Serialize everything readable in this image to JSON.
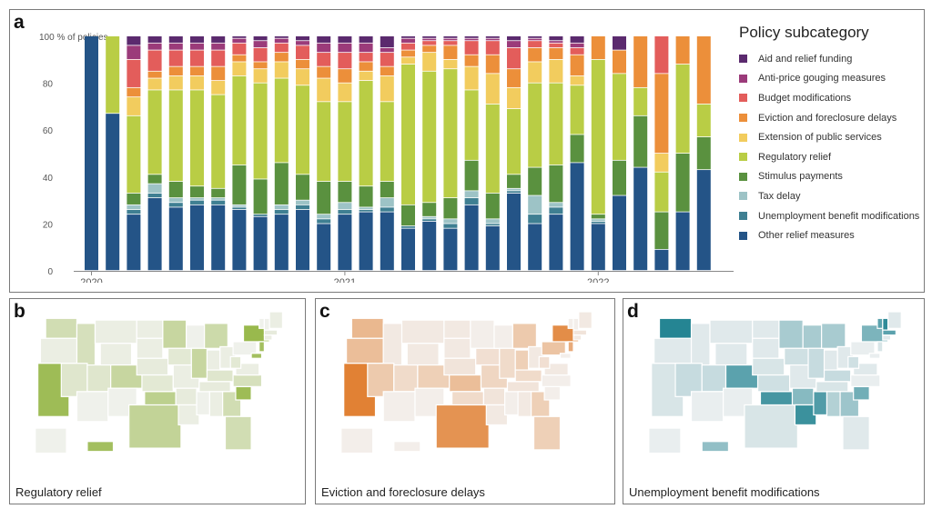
{
  "panels": {
    "a": {
      "letter": "a"
    },
    "b": {
      "letter": "b",
      "caption": "Regulatory relief",
      "color": "#8fb23a",
      "light": "#e3ebd2"
    },
    "c": {
      "letter": "c",
      "caption": "Eviction and foreclosure delays",
      "color": "#e07b2a",
      "light": "#f2dcc8"
    },
    "d": {
      "letter": "d",
      "caption": "Unemployment benefit modifications",
      "color": "#1a7f8e",
      "light": "#cfe3e6"
    }
  },
  "legend": {
    "title": "Policy subcategory",
    "items": [
      {
        "label": "Aid and relief funding",
        "color": "#5b2a6e"
      },
      {
        "label": "Anti-price gouging measures",
        "color": "#9b3b7a"
      },
      {
        "label": "Budget modifications",
        "color": "#e35d5b"
      },
      {
        "label": "Eviction and foreclosure delays",
        "color": "#ec8f3a"
      },
      {
        "label": "Extension of public services",
        "color": "#f2cc5e"
      },
      {
        "label": "Regulatory relief",
        "color": "#b9cd45"
      },
      {
        "label": "Stimulus payments",
        "color": "#5a913f"
      },
      {
        "label": "Tax delay",
        "color": "#9dc3c6"
      },
      {
        "label": "Unemployment benefit modifications",
        "color": "#3f7f92"
      },
      {
        "label": "Other relief measures",
        "color": "#245487"
      }
    ]
  },
  "chart_data": {
    "type": "bar",
    "stacked": true,
    "ylabel": "% of policies",
    "ylim": [
      0,
      100
    ],
    "y_ticks": [
      "100",
      "80",
      "60",
      "40",
      "20",
      "0"
    ],
    "x_tick_labels": [
      "2020",
      "2021",
      "2022"
    ],
    "x_tick_at_bar": [
      0,
      12,
      24
    ],
    "grid": false,
    "legend_position": "right",
    "series_order": [
      "Other relief measures",
      "Unemployment benefit modifications",
      "Tax delay",
      "Stimulus payments",
      "Regulatory relief",
      "Extension of public services",
      "Eviction and foreclosure delays",
      "Budget modifications",
      "Anti-price gouging measures",
      "Aid and relief funding"
    ],
    "bars": [
      [
        100,
        0,
        0,
        0,
        0,
        0,
        0,
        0,
        0,
        0
      ],
      [
        67,
        0,
        0,
        0,
        33,
        0,
        0,
        0,
        0,
        0
      ],
      [
        24,
        2,
        2,
        5,
        33,
        8,
        4,
        12,
        6,
        4
      ],
      [
        31,
        2,
        4,
        4,
        36,
        5,
        3,
        9,
        3,
        3
      ],
      [
        27,
        2,
        2,
        7,
        39,
        6,
        4,
        7,
        3,
        3
      ],
      [
        28,
        2,
        1,
        5,
        41,
        6,
        4,
        7,
        3,
        3
      ],
      [
        28,
        2,
        1,
        4,
        40,
        6,
        6,
        7,
        3,
        3
      ],
      [
        26,
        1,
        1,
        17,
        38,
        6,
        3,
        5,
        2,
        1
      ],
      [
        23,
        1,
        0,
        15,
        41,
        6,
        3,
        6,
        3,
        2
      ],
      [
        24,
        2,
        2,
        18,
        36,
        7,
        4,
        4,
        2,
        1
      ],
      [
        26,
        2,
        2,
        11,
        38,
        7,
        4,
        6,
        2,
        2
      ],
      [
        20,
        2,
        2,
        14,
        34,
        10,
        5,
        6,
        4,
        3
      ],
      [
        24,
        2,
        3,
        9,
        34,
        8,
        6,
        7,
        4,
        3
      ],
      [
        25,
        1,
        1,
        9,
        45,
        4,
        4,
        4,
        4,
        3
      ],
      [
        25,
        2,
        4,
        7,
        34,
        11,
        4,
        6,
        2,
        5
      ],
      [
        18,
        1,
        0,
        9,
        60,
        3,
        3,
        3,
        2,
        1
      ],
      [
        21,
        1,
        1,
        6,
        56,
        8,
        3,
        2,
        1,
        1
      ],
      [
        18,
        2,
        2,
        9,
        55,
        4,
        6,
        2,
        1,
        1
      ],
      [
        28,
        3,
        3,
        13,
        30,
        10,
        5,
        6,
        1,
        1
      ],
      [
        19,
        1,
        2,
        11,
        38,
        13,
        8,
        6,
        1,
        1
      ],
      [
        33,
        1,
        1,
        6,
        28,
        9,
        8,
        9,
        3,
        2
      ],
      [
        20,
        4,
        8,
        12,
        36,
        9,
        6,
        3,
        1,
        1
      ],
      [
        24,
        3,
        2,
        16,
        35,
        10,
        5,
        2,
        1,
        2
      ],
      [
        46,
        0,
        0,
        12,
        21,
        4,
        9,
        3,
        2,
        3
      ],
      [
        20,
        1,
        1,
        2,
        66,
        0,
        10,
        0,
        0,
        0
      ],
      [
        32,
        0,
        0,
        15,
        37,
        0,
        10,
        0,
        0,
        6
      ],
      [
        44,
        0,
        0,
        22,
        12,
        0,
        22,
        0,
        0,
        0
      ],
      [
        9,
        0,
        0,
        16,
        17,
        8,
        34,
        16,
        0,
        0
      ],
      [
        25,
        0,
        0,
        25,
        38,
        0,
        12,
        0,
        0,
        0
      ],
      [
        43,
        0,
        0,
        14,
        14,
        0,
        29,
        0,
        0,
        0
      ]
    ]
  }
}
